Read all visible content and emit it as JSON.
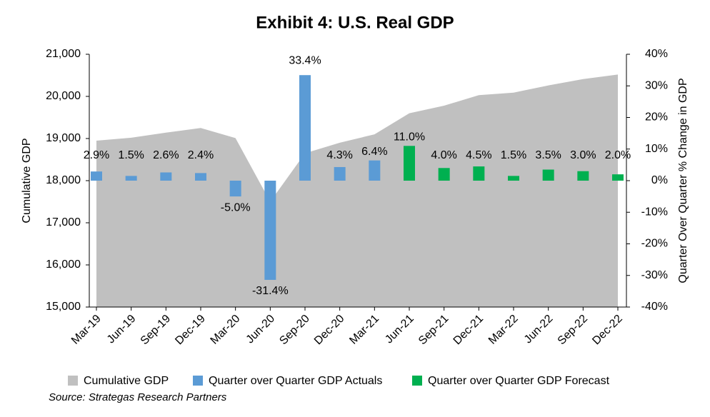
{
  "chart_data": {
    "type": "combo",
    "title": "Exhibit 4: U.S. Real GDP",
    "categories": [
      "Mar-19",
      "Jun-19",
      "Sep-19",
      "Dec-19",
      "Mar-20",
      "Jun-20",
      "Sep-20",
      "Dec-20",
      "Mar-21",
      "Jun-21",
      "Sep-21",
      "Dec-21",
      "Mar-22",
      "Jun-22",
      "Sep-22",
      "Dec-22"
    ],
    "y_label": "Cumulative GDP",
    "y2_label": "Quarter Over Quarter % Change in GDP",
    "ylim": [
      15000,
      21000
    ],
    "yticks": [
      {
        "value": 15000,
        "label": "15,000"
      },
      {
        "value": 16000,
        "label": "16,000"
      },
      {
        "value": 17000,
        "label": "17,000"
      },
      {
        "value": 18000,
        "label": "18,000"
      },
      {
        "value": 19000,
        "label": "19,000"
      },
      {
        "value": 20000,
        "label": "20,000"
      },
      {
        "value": 21000,
        "label": "21,000"
      }
    ],
    "y2lim": [
      -40,
      40
    ],
    "y2ticks": [
      {
        "value": -40,
        "label": "-40%"
      },
      {
        "value": -30,
        "label": "-30%"
      },
      {
        "value": -20,
        "label": "-20%"
      },
      {
        "value": -10,
        "label": "-10%"
      },
      {
        "value": 0,
        "label": "0%"
      },
      {
        "value": 10,
        "label": "10%"
      },
      {
        "value": 20,
        "label": "20%"
      },
      {
        "value": 30,
        "label": "30%"
      },
      {
        "value": 40,
        "label": "40%"
      }
    ],
    "series": [
      {
        "name": "Cumulative GDP",
        "type": "area",
        "color": "#c0c0c0",
        "values": [
          18950,
          19020,
          19140,
          19250,
          19010,
          17500,
          18650,
          18900,
          19100,
          19600,
          19780,
          20030,
          20090,
          20260,
          20410,
          20520
        ]
      },
      {
        "name": "Quarter over Quarter GDP Actuals",
        "type": "bar",
        "axis": "y2",
        "color": "#5b9bd5",
        "values": [
          2.9,
          1.5,
          2.6,
          2.4,
          -5.0,
          -31.4,
          33.4,
          4.3,
          6.4,
          null,
          null,
          null,
          null,
          null,
          null,
          null
        ],
        "value_labels": [
          "2.9%",
          "1.5%",
          "2.6%",
          "2.4%",
          "-5.0%",
          "-31.4%",
          "33.4%",
          "4.3%",
          "6.4%",
          null,
          null,
          null,
          null,
          null,
          null,
          null
        ]
      },
      {
        "name": "Quarter over Quarter GDP Forecast",
        "type": "bar",
        "axis": "y2",
        "color": "#00b050",
        "values": [
          null,
          null,
          null,
          null,
          null,
          null,
          null,
          null,
          null,
          11.0,
          4.0,
          4.5,
          1.5,
          3.5,
          3.0,
          2.0
        ],
        "value_labels": [
          null,
          null,
          null,
          null,
          null,
          null,
          null,
          null,
          null,
          "11.0%",
          "4.0%",
          "4.5%",
          "1.5%",
          "3.5%",
          "3.0%",
          "2.0%"
        ]
      }
    ],
    "source": "Source: Strategas Research Partners"
  }
}
